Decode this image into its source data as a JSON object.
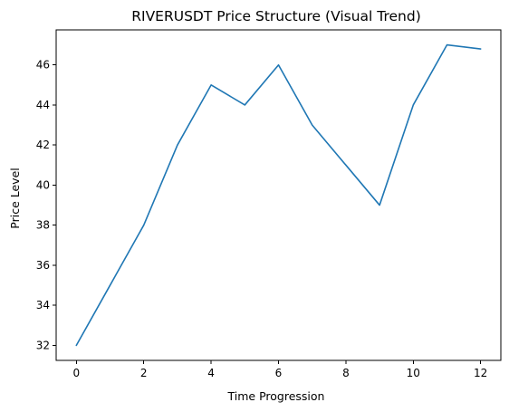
{
  "chart_data": {
    "type": "line",
    "title": "RIVERUSDT Price Structure (Visual Trend)",
    "xlabel": "Time Progression",
    "ylabel": "Price Level",
    "xlim": [
      -0.6,
      12.6
    ],
    "ylim": [
      31.25,
      47.75
    ],
    "xticks": [
      0,
      2,
      4,
      6,
      8,
      10,
      12
    ],
    "yticks": [
      32,
      34,
      36,
      38,
      40,
      42,
      44,
      46
    ],
    "grid": false,
    "legend": "none",
    "series": [
      {
        "color": "#1f77b4",
        "x": [
          0,
          1,
          2,
          3,
          4,
          5,
          6,
          7,
          8,
          9,
          10,
          11,
          12
        ],
        "y": [
          32,
          35,
          38,
          42,
          45,
          44,
          46,
          43,
          41,
          39,
          44,
          47,
          46.8
        ]
      }
    ]
  }
}
